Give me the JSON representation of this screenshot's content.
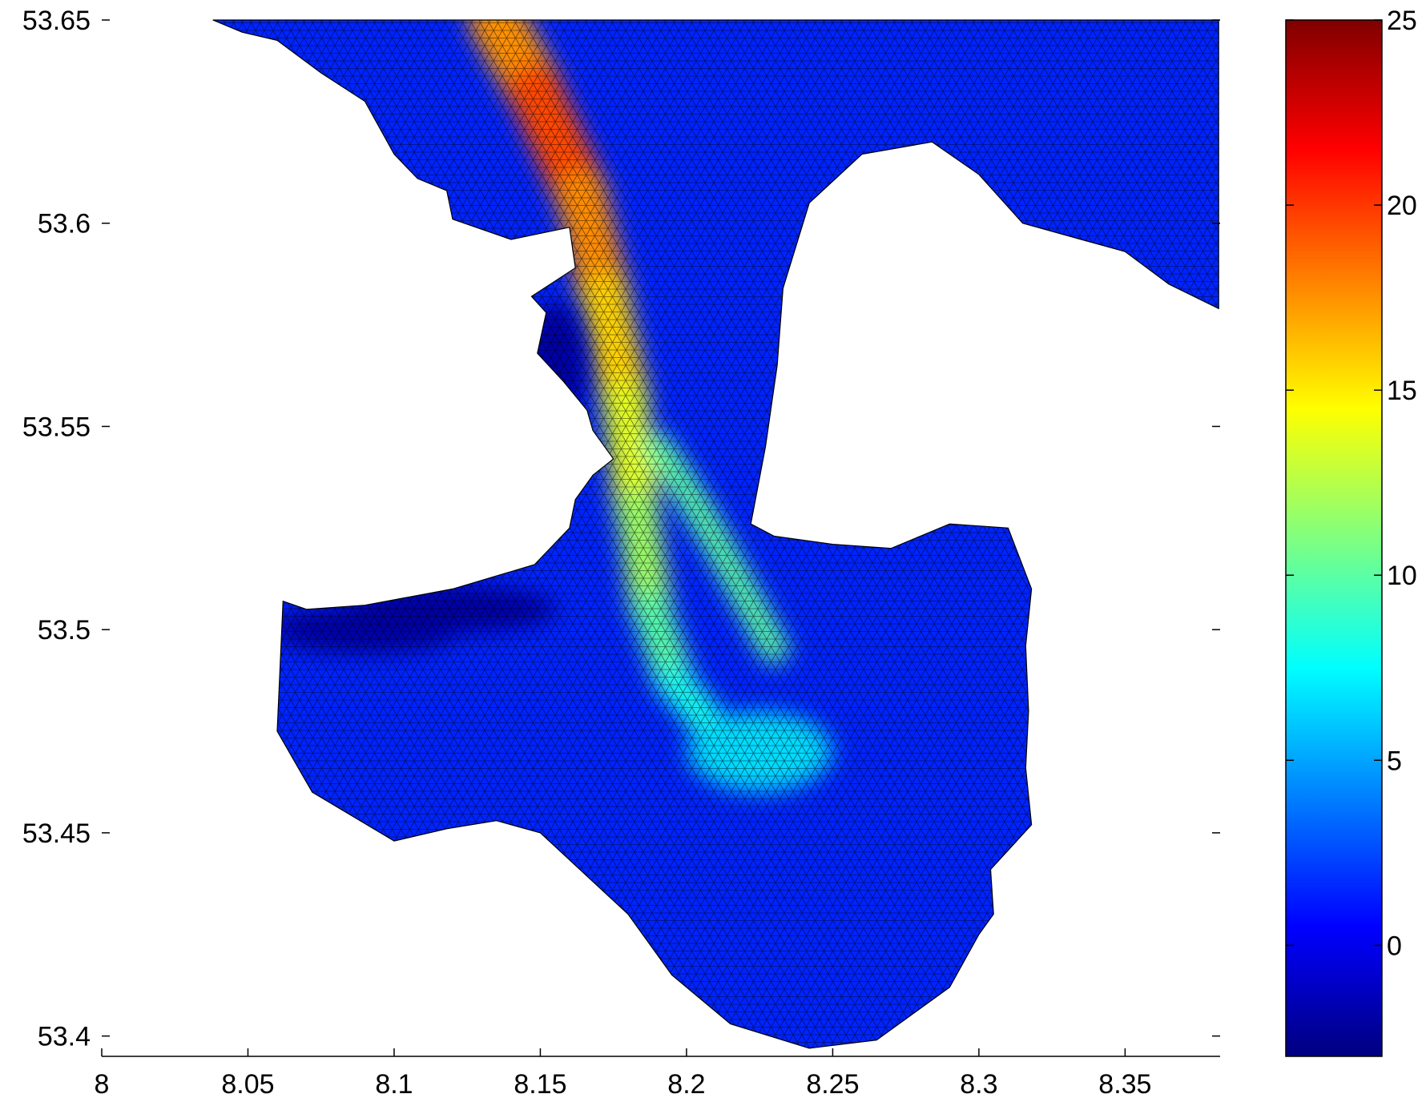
{
  "chart_data": {
    "type": "heatmap",
    "title": "",
    "xlabel": "",
    "ylabel": "",
    "x_range": [
      8.0,
      8.3825
    ],
    "y_range": [
      53.395,
      53.65
    ],
    "x_ticks": [
      "8",
      "8.05",
      "8.1",
      "8.15",
      "8.2",
      "8.25",
      "8.3",
      "8.35"
    ],
    "x_tick_values": [
      8.0,
      8.05,
      8.1,
      8.15,
      8.2,
      8.25,
      8.3,
      8.35
    ],
    "y_ticks": [
      "53.4",
      "53.45",
      "53.5",
      "53.55",
      "53.6",
      "53.65"
    ],
    "y_tick_values": [
      53.4,
      53.45,
      53.5,
      53.55,
      53.6,
      53.65
    ],
    "grid": false,
    "colormap": "jet",
    "colorbar": {
      "range": [
        -3,
        25
      ],
      "ticks": [
        "0",
        "5",
        "10",
        "15",
        "20",
        "25"
      ],
      "tick_values": [
        0,
        5,
        10,
        15,
        20,
        25
      ]
    },
    "mesh": "triangular",
    "mesh_line_color": "#000000",
    "domain_outline": [
      [
        8.038,
        53.65
      ],
      [
        8.048,
        53.647
      ],
      [
        8.06,
        53.645
      ],
      [
        8.075,
        53.637
      ],
      [
        8.09,
        53.63
      ],
      [
        8.1,
        53.617
      ],
      [
        8.108,
        53.611
      ],
      [
        8.118,
        53.608
      ],
      [
        8.12,
        53.601
      ],
      [
        8.14,
        53.596
      ],
      [
        8.16,
        53.599
      ],
      [
        8.162,
        53.589
      ],
      [
        8.147,
        53.582
      ],
      [
        8.152,
        53.578
      ],
      [
        8.149,
        53.568
      ],
      [
        8.158,
        53.561
      ],
      [
        8.166,
        53.554
      ],
      [
        8.168,
        53.549
      ],
      [
        8.175,
        53.542
      ],
      [
        8.168,
        53.538
      ],
      [
        8.162,
        53.532
      ],
      [
        8.16,
        53.525
      ],
      [
        8.148,
        53.516
      ],
      [
        8.12,
        53.51
      ],
      [
        8.09,
        53.506
      ],
      [
        8.07,
        53.505
      ],
      [
        8.062,
        53.507
      ],
      [
        8.06,
        53.475
      ],
      [
        8.072,
        53.46
      ],
      [
        8.1,
        53.448
      ],
      [
        8.118,
        53.451
      ],
      [
        8.135,
        53.453
      ],
      [
        8.15,
        53.45
      ],
      [
        8.18,
        53.43
      ],
      [
        8.195,
        53.415
      ],
      [
        8.215,
        53.403
      ],
      [
        8.242,
        53.397
      ],
      [
        8.265,
        53.399
      ],
      [
        8.29,
        53.412
      ],
      [
        8.3,
        53.425
      ],
      [
        8.305,
        53.43
      ],
      [
        8.304,
        53.441
      ],
      [
        8.318,
        53.452
      ],
      [
        8.316,
        53.466
      ],
      [
        8.317,
        53.48
      ],
      [
        8.316,
        53.496
      ],
      [
        8.318,
        53.51
      ],
      [
        8.31,
        53.525
      ],
      [
        8.29,
        53.526
      ],
      [
        8.27,
        53.52
      ],
      [
        8.25,
        53.521
      ],
      [
        8.23,
        53.523
      ],
      [
        8.222,
        53.526
      ],
      [
        8.227,
        53.545
      ],
      [
        8.231,
        53.565
      ],
      [
        8.233,
        53.584
      ],
      [
        8.242,
        53.605
      ],
      [
        8.26,
        53.617
      ],
      [
        8.284,
        53.62
      ],
      [
        8.3,
        53.612
      ],
      [
        8.315,
        53.6
      ],
      [
        8.335,
        53.596
      ],
      [
        8.35,
        53.593
      ],
      [
        8.365,
        53.585
      ],
      [
        8.382,
        53.579
      ],
      [
        8.382,
        53.65
      ]
    ],
    "channel_centerline": [
      [
        8.135,
        53.65
      ],
      [
        8.148,
        53.633
      ],
      [
        8.164,
        53.607
      ],
      [
        8.172,
        53.582
      ],
      [
        8.179,
        53.556
      ],
      [
        8.183,
        53.53
      ],
      [
        8.188,
        53.505
      ],
      [
        8.196,
        53.487
      ],
      [
        8.212,
        53.473
      ]
    ],
    "value_field": {
      "background": 1.5,
      "channel_peak": 21.5,
      "channel_peak_location": [
        8.165,
        53.61
      ],
      "channel_width": 0.012,
      "colors_note": "channel values decrease downstream from ~21 to ~8",
      "shallow_tidal_flats": -2
    }
  }
}
